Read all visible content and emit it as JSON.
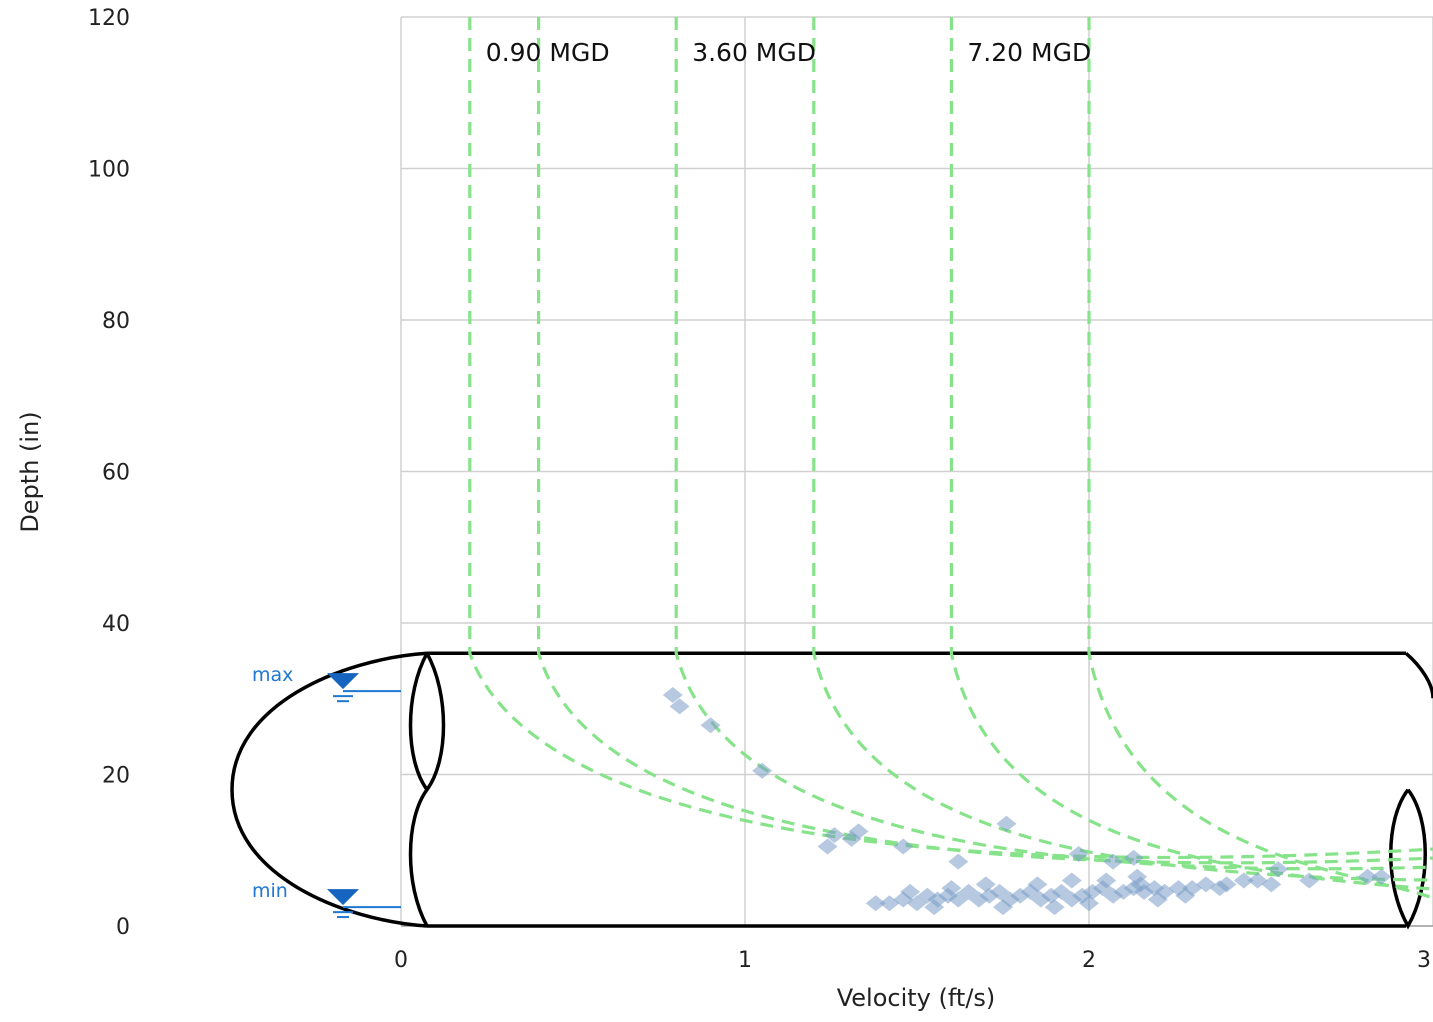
{
  "chart_data": {
    "type": "scatter",
    "title": "",
    "xlabel": "Velocity (ft/s)",
    "ylabel": "Depth (in)",
    "xlim": [
      0,
      3
    ],
    "ylim": [
      0,
      120
    ],
    "x_ticks": [
      0,
      1,
      2,
      3
    ],
    "y_ticks": [
      0,
      20,
      40,
      60,
      80,
      100,
      120
    ],
    "grid": true,
    "pipe_diameter_in": 36,
    "level_markers": [
      {
        "name": "max",
        "depth": 31
      },
      {
        "name": "min",
        "depth": 2.5
      }
    ],
    "flow_curves": [
      {
        "asymptote_velocity": 0.2,
        "label": "0.90 MGD"
      },
      {
        "asymptote_velocity": 0.4,
        "label": ""
      },
      {
        "asymptote_velocity": 0.8,
        "label": "3.60 MGD"
      },
      {
        "asymptote_velocity": 1.2,
        "label": ""
      },
      {
        "asymptote_velocity": 1.6,
        "label": "7.20 MGD"
      },
      {
        "asymptote_velocity": 2.0,
        "label": ""
      }
    ],
    "series": [
      {
        "color": "#7a9cc6",
        "points": [
          [
            0.79,
            30.5
          ],
          [
            0.81,
            29
          ],
          [
            0.9,
            26.5
          ],
          [
            1.05,
            20.5
          ],
          [
            1.24,
            10.5
          ],
          [
            1.26,
            12
          ],
          [
            1.31,
            11.5
          ],
          [
            1.33,
            12.5
          ],
          [
            1.46,
            10.5
          ],
          [
            1.62,
            8.5
          ],
          [
            1.76,
            13.5
          ],
          [
            1.97,
            9.5
          ],
          [
            2.07,
            8.5
          ],
          [
            2.13,
            9
          ],
          [
            2.14,
            6.5
          ],
          [
            2.4,
            5.5
          ],
          [
            2.45,
            6
          ],
          [
            2.49,
            6
          ],
          [
            2.53,
            5.5
          ],
          [
            2.55,
            7.5
          ],
          [
            2.64,
            6
          ],
          [
            2.81,
            6.5
          ],
          [
            2.85,
            6.5
          ],
          [
            1.38,
            3
          ],
          [
            1.42,
            3
          ],
          [
            1.46,
            3.5
          ],
          [
            1.5,
            3
          ],
          [
            1.53,
            4
          ],
          [
            1.56,
            3.5
          ],
          [
            1.59,
            4
          ],
          [
            1.62,
            3.5
          ],
          [
            1.65,
            4.5
          ],
          [
            1.68,
            3.5
          ],
          [
            1.71,
            4
          ],
          [
            1.74,
            4.5
          ],
          [
            1.77,
            3.5
          ],
          [
            1.8,
            4
          ],
          [
            1.83,
            4.5
          ],
          [
            1.86,
            3.5
          ],
          [
            1.89,
            4
          ],
          [
            1.92,
            4.5
          ],
          [
            1.95,
            3.5
          ],
          [
            1.98,
            4
          ],
          [
            2.01,
            4.5
          ],
          [
            2.04,
            5
          ],
          [
            2.07,
            4
          ],
          [
            2.1,
            4.5
          ],
          [
            2.13,
            5
          ],
          [
            2.16,
            4.5
          ],
          [
            2.19,
            5
          ],
          [
            2.22,
            4.5
          ],
          [
            2.26,
            5
          ],
          [
            2.3,
            5
          ],
          [
            2.34,
            5.5
          ],
          [
            2.38,
            5
          ],
          [
            1.6,
            5
          ],
          [
            1.7,
            5.5
          ],
          [
            1.85,
            5.5
          ],
          [
            1.95,
            6
          ],
          [
            2.05,
            6
          ],
          [
            2.15,
            5.5
          ],
          [
            1.75,
            2.5
          ],
          [
            1.9,
            2.5
          ],
          [
            2.0,
            3
          ],
          [
            1.55,
            2.5
          ],
          [
            2.2,
            3.5
          ],
          [
            1.48,
            4.5
          ],
          [
            2.28,
            4
          ]
        ]
      }
    ]
  }
}
